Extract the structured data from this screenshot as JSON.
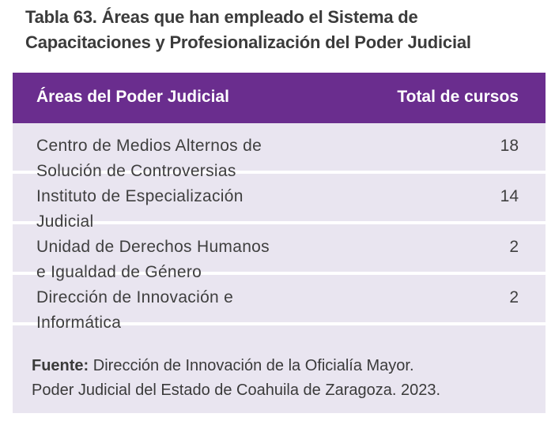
{
  "caption": {
    "line1": "Tabla 63. Áreas que han empleado el Sistema de",
    "line2": "Capacitaciones y Profesionalización del Poder Judicial"
  },
  "table": {
    "headers": {
      "area": "Áreas del Poder Judicial",
      "total": "Total de cursos"
    },
    "rows": [
      {
        "area_line1": "Centro de Medios Alternos de",
        "area_line2": "Solución de Controversias",
        "total": "18"
      },
      {
        "area_line1": "Instituto de Especialización",
        "area_line2": "Judicial",
        "total": "14"
      },
      {
        "area_line1": "Unidad de Derechos Humanos",
        "area_line2": "e Igualdad de Género",
        "total": "2"
      },
      {
        "area_line1": "Dirección de Innovación e",
        "area_line2": "Informática",
        "total": "2"
      }
    ]
  },
  "source": {
    "label": "Fuente:",
    "line1": " Dirección de Innovación de la Oficialía Mayor.",
    "line2": "Poder Judicial del Estado de Coahuila de Zaragoza. 2023."
  },
  "colors": {
    "header_bg": "#6a2d8e",
    "panel_bg": "#e9e5f0"
  }
}
